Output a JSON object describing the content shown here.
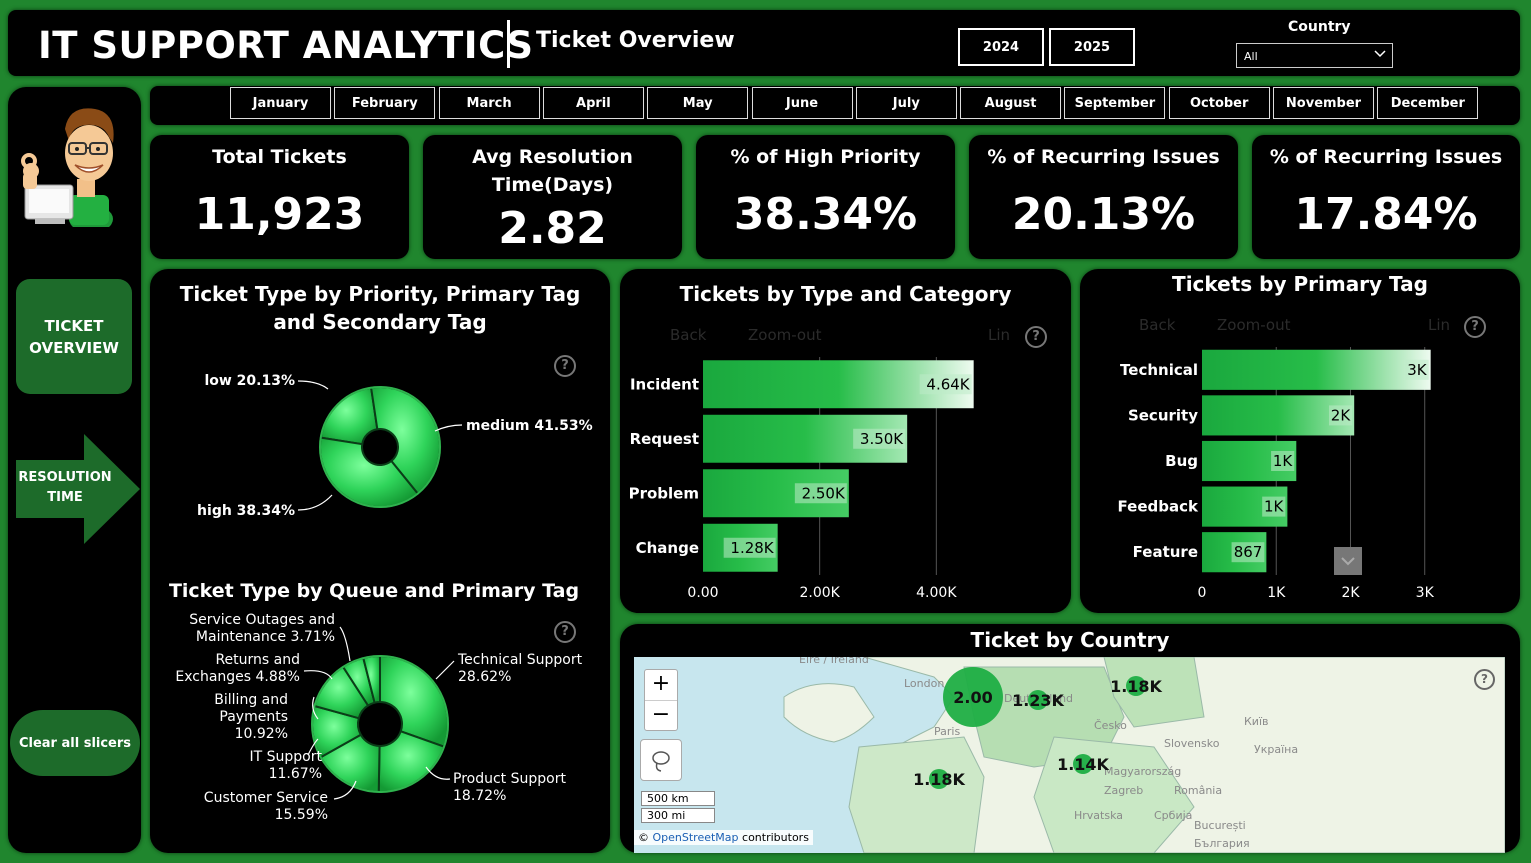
{
  "header": {
    "brand": "IT SUPPORT ANALYTICS",
    "subtitle": "Ticket Overview",
    "years": [
      "2024",
      "2025"
    ],
    "country_label": "Country",
    "country_value": "All"
  },
  "sidebar": {
    "nav_ticket_overview": "TICKET OVERVIEW",
    "nav_resolution_time": "RESOLUTION TIME",
    "clear_slicers": "Clear all slicers"
  },
  "months": [
    "January",
    "February",
    "March",
    "April",
    "May",
    "June",
    "July",
    "August",
    "September",
    "October",
    "November",
    "December"
  ],
  "kpis": [
    {
      "title": "Total Tickets",
      "value": "11,923"
    },
    {
      "title": "Avg Resolution Time(Days)",
      "value": "2.82"
    },
    {
      "title": "% of High Priority",
      "value": "38.34%"
    },
    {
      "title": "% of Recurring Issues",
      "value": "20.13%"
    },
    {
      "title": "% of Recurring Issues",
      "value": "17.84%"
    }
  ],
  "controls": {
    "back": "Back",
    "zoom_out": "Zoom-out",
    "lin": "Lin",
    "help": "?"
  },
  "chart_data": [
    {
      "type": "pie",
      "title": "Ticket Type by Priority, Primary Tag and Secondary Tag",
      "slices": [
        {
          "label": "low 20.13%",
          "value": 20.13
        },
        {
          "label": "medium 41.53%",
          "value": 41.53
        },
        {
          "label": "high 38.34%",
          "value": 38.34
        }
      ],
      "colors": {
        "ring": "#2fd45a",
        "dark": "#149a34"
      }
    },
    {
      "type": "pie",
      "title": "Ticket Type by Queue and Primary Tag",
      "slices": [
        {
          "label": "Technical Support 28.62%",
          "value": 28.62
        },
        {
          "label": "Product Support 18.72%",
          "value": 18.72
        },
        {
          "label": "Customer Service 15.59%",
          "value": 15.59
        },
        {
          "label": "IT Support 11.67%",
          "value": 11.67
        },
        {
          "label": "Billing and Payments 10.92%",
          "value": 10.92
        },
        {
          "label": "Returns and Exchanges 4.88%",
          "value": 4.88
        },
        {
          "label": "Service Outages and Maintenance 3.71%",
          "value": 3.71
        }
      ]
    },
    {
      "type": "bar",
      "orientation": "horizontal",
      "title": "Tickets by Type and Category",
      "categories": [
        "Incident",
        "Request",
        "Problem",
        "Change"
      ],
      "values": [
        4640,
        3500,
        2500,
        1280
      ],
      "data_labels": [
        "4.64K",
        "3.50K",
        "2.50K",
        "1.28K"
      ],
      "xlim": [
        0,
        6000
      ],
      "xticks": [
        "0.00",
        "2.00K",
        "4.00K"
      ],
      "grid": true
    },
    {
      "type": "bar",
      "orientation": "horizontal",
      "title": "Tickets by Primary Tag",
      "categories": [
        "Technical",
        "Security",
        "Bug",
        "Feedback",
        "Feature"
      ],
      "values": [
        3080,
        2050,
        1270,
        1150,
        867
      ],
      "data_labels": [
        "3K",
        "2K",
        "1K",
        "1K",
        "867"
      ],
      "xlim": [
        0,
        3300
      ],
      "xticks": [
        "0",
        "1K",
        "2K",
        "3K"
      ],
      "grid": true
    }
  ],
  "map": {
    "title": "Ticket by Country",
    "bubbles": [
      {
        "label": "2.00"
      },
      {
        "label": "1.23K"
      },
      {
        "label": "1.18K"
      },
      {
        "label": "1.14K"
      },
      {
        "label": "1.18K"
      }
    ],
    "place_names": [
      "Éire / Ireland",
      "London",
      "Deutschland",
      "Česko",
      "Paris",
      "Київ",
      "Україна",
      "Slovensko",
      "Magyarország",
      "România",
      "Zagreb",
      "Hrvatska",
      "Србија",
      "București",
      "България"
    ],
    "zoom_in": "+",
    "zoom_out": "−",
    "scale_km": "500 km",
    "scale_mi": "300 mi",
    "attribution_prefix": "©",
    "attribution_link": "OpenStreetMap",
    "attribution_suffix": "contributors"
  }
}
